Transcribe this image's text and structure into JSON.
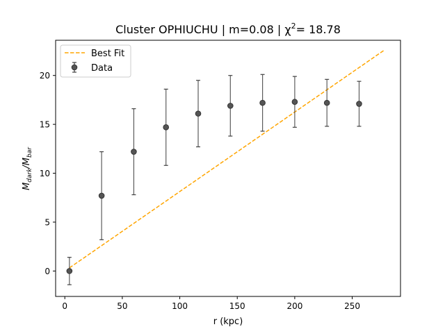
{
  "chart_data": {
    "type": "scatter",
    "title_prefix": "Cluster OPHIUCHU | m=0.08 | χ",
    "title_sup": "2",
    "title_suffix": "= 18.78",
    "xlabel": "r (kpc)",
    "ylabel_main": "M",
    "ylabel_sub1": "dark",
    "ylabel_sep": "/M",
    "ylabel_sub2": "bar",
    "xlim": [
      -8,
      292
    ],
    "ylim": [
      -2.6,
      23.6
    ],
    "xticks": [
      0,
      50,
      100,
      150,
      200,
      250
    ],
    "yticks": [
      0,
      5,
      10,
      15,
      20
    ],
    "grid": false,
    "legend_position": "top-left",
    "colors": {
      "fit": "#ffa500",
      "data": "#404040"
    },
    "series": [
      {
        "name": "Data",
        "x": [
          4,
          32,
          60,
          88,
          116,
          144,
          172,
          200,
          228,
          256
        ],
        "y": [
          0.0,
          7.7,
          12.2,
          14.7,
          16.1,
          16.9,
          17.2,
          17.3,
          17.2,
          17.1
        ],
        "yerr": [
          1.4,
          4.5,
          4.4,
          3.9,
          3.4,
          3.1,
          2.9,
          2.6,
          2.4,
          2.3
        ]
      },
      {
        "name": "Best Fit",
        "x": [
          4,
          278
        ],
        "y": [
          0.32,
          22.6
        ]
      }
    ]
  }
}
